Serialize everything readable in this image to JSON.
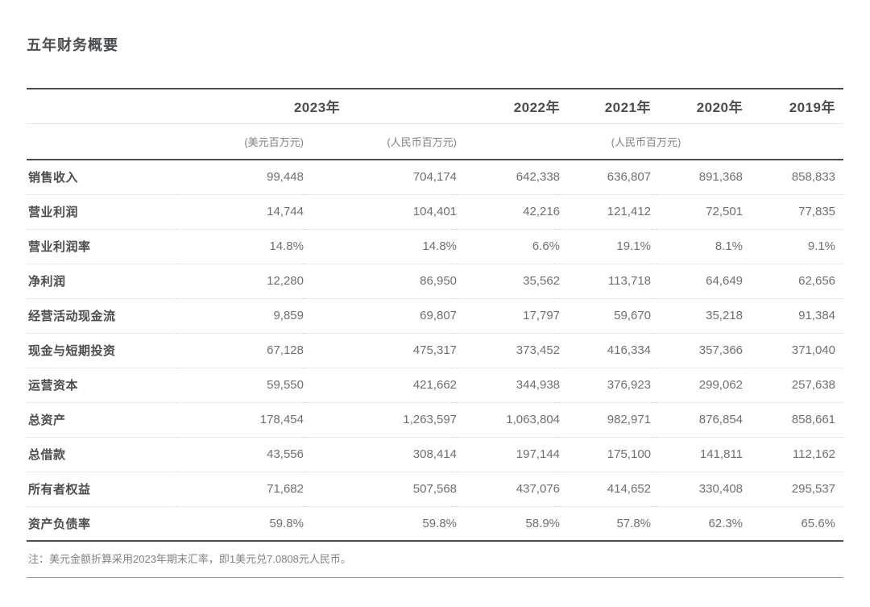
{
  "title": "五年财务概要",
  "table": {
    "year_headers": [
      "2023年",
      "2022年",
      "2021年",
      "2020年",
      "2019年"
    ],
    "unit_headers": {
      "usd": "(美元百万元)",
      "rmb": "(人民币百万元)",
      "rmb_group": "(人民币百万元)"
    },
    "rows": [
      {
        "label": "销售收入",
        "values": [
          "99,448",
          "704,174",
          "642,338",
          "636,807",
          "891,368",
          "858,833"
        ]
      },
      {
        "label": "营业利润",
        "values": [
          "14,744",
          "104,401",
          "42,216",
          "121,412",
          "72,501",
          "77,835"
        ]
      },
      {
        "label": "营业利润率",
        "values": [
          "14.8%",
          "14.8%",
          "6.6%",
          "19.1%",
          "8.1%",
          "9.1%"
        ]
      },
      {
        "label": "净利润",
        "values": [
          "12,280",
          "86,950",
          "35,562",
          "113,718",
          "64,649",
          "62,656"
        ]
      },
      {
        "label": "经营活动现金流",
        "values": [
          "9,859",
          "69,807",
          "17,797",
          "59,670",
          "35,218",
          "91,384"
        ]
      },
      {
        "label": "现金与短期投资",
        "values": [
          "67,128",
          "475,317",
          "373,452",
          "416,334",
          "357,366",
          "371,040"
        ]
      },
      {
        "label": "运营资本",
        "values": [
          "59,550",
          "421,662",
          "344,938",
          "376,923",
          "299,062",
          "257,638"
        ]
      },
      {
        "label": "总资产",
        "values": [
          "178,454",
          "1,263,597",
          "1,063,804",
          "982,971",
          "876,854",
          "858,661"
        ]
      },
      {
        "label": "总借款",
        "values": [
          "43,556",
          "308,414",
          "197,144",
          "175,100",
          "141,811",
          "112,162"
        ]
      },
      {
        "label": "所有者权益",
        "values": [
          "71,682",
          "507,568",
          "437,076",
          "414,652",
          "330,408",
          "295,537"
        ]
      },
      {
        "label": "资产负债率",
        "values": [
          "59.8%",
          "59.8%",
          "58.9%",
          "57.8%",
          "62.3%",
          "65.6%"
        ]
      }
    ]
  },
  "note": "注：美元金额折算采用2023年期末汇率，即1美元兑7.0808元人民币。",
  "colors": {
    "background": "#ffffff",
    "text_dark": "#4a4d50",
    "text_number": "#6d7073",
    "text_unit": "#7f8285",
    "rule_dark": "#4c4c4c",
    "rule_light": "#e4e4e4",
    "row_divider": "#d4d4d4"
  }
}
